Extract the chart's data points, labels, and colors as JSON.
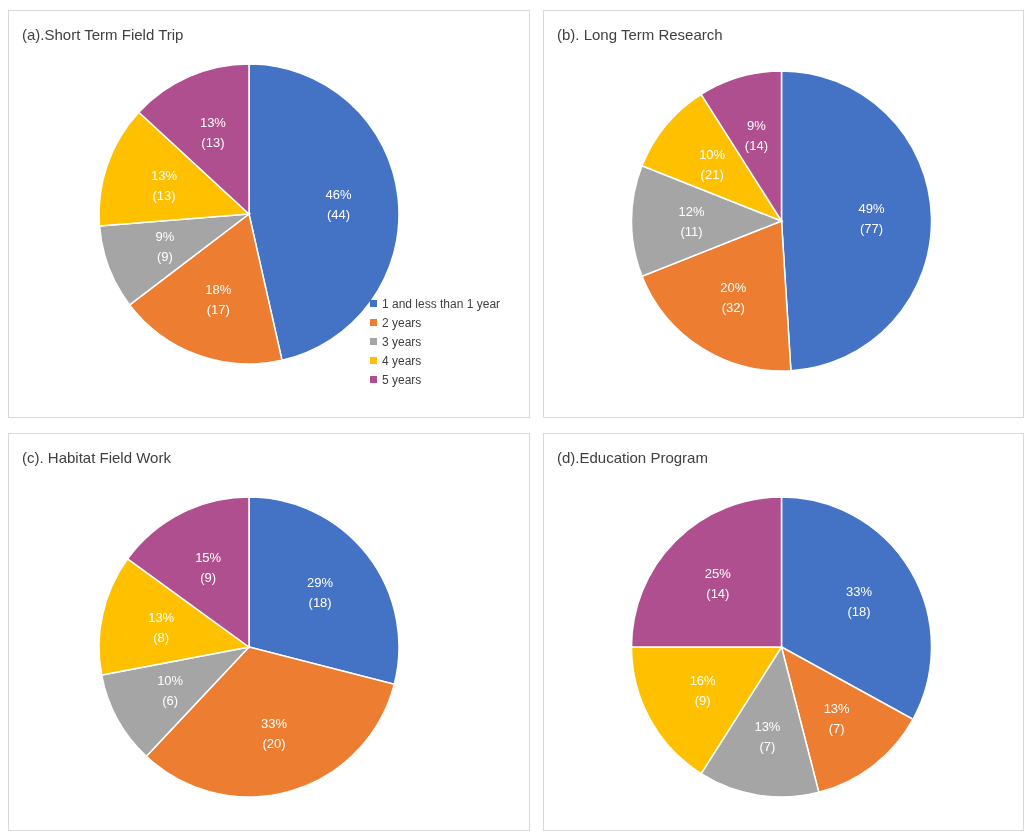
{
  "chart_data": [
    {
      "type": "pie",
      "title": "(a).Short Term Field Trip",
      "categories": [
        "1 and less than 1 year",
        "2 years",
        "3 years",
        "4 years",
        "5 years"
      ],
      "values": [
        46,
        18,
        9,
        13,
        13
      ],
      "colors": [
        "#4472c4",
        "#ed7d31",
        "#a5a5a5",
        "#ffc000",
        "#b04f8f"
      ],
      "value_labels": [
        "46%\n(44)",
        "18%\n(17)",
        "9%\n(9)",
        "13%\n(13)",
        "13%\n(13)"
      ],
      "legend": "bottom right"
    },
    {
      "type": "pie",
      "title": "(b). Long Term Research",
      "categories": [
        null,
        null,
        null,
        null,
        null
      ],
      "values": [
        49,
        20,
        12,
        10,
        9
      ],
      "colors": [
        "#4472c4",
        "#ed7d31",
        "#a5a5a5",
        "#ffc000",
        "#b04f8f"
      ],
      "value_labels": [
        "49%\n(77)",
        "20%\n(32)",
        "12%\n(11)",
        "10%\n(21)",
        "9%\n(14)"
      ]
    },
    {
      "type": "pie",
      "title": "(c). Habitat Field Work",
      "categories": [
        null,
        null,
        null,
        null,
        null
      ],
      "values": [
        29,
        33,
        10,
        13,
        15
      ],
      "colors": [
        "#4472c4",
        "#ed7d31",
        "#a5a5a5",
        "#ffc000",
        "#b04f8f"
      ],
      "value_labels": [
        "29%\n(18)",
        "33%\n(20)",
        "10%\n(6)",
        "13%\n(8)",
        "15%\n(9)"
      ]
    },
    {
      "type": "pie",
      "title": "(d).Education Program",
      "categories": [
        null,
        null,
        null,
        null,
        null
      ],
      "values": [
        33,
        13,
        13,
        16,
        25
      ],
      "colors": [
        "#4472c4",
        "#ed7d31",
        "#a5a5a5",
        "#ffc000",
        "#b04f8f"
      ],
      "value_labels": [
        "33%\n(18)",
        "13%\n(7)",
        "13%\n(7)",
        "16%\n(9)",
        "25%\n(14)"
      ]
    }
  ]
}
